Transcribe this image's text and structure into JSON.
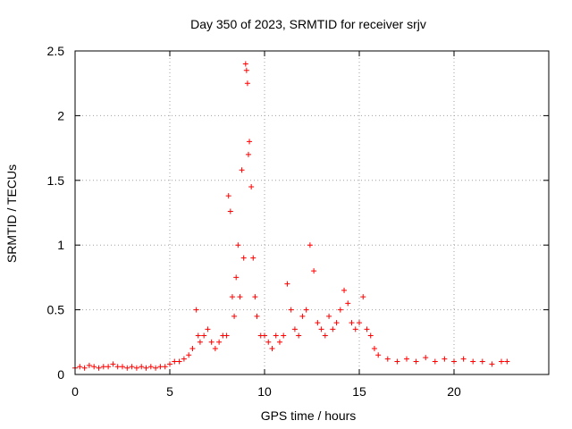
{
  "chart_data": {
    "type": "scatter",
    "title": "Day 350 of 2023, SRMTID for receiver srjv",
    "xlabel": "GPS time / hours",
    "ylabel": "SRMTID / TECUs",
    "xlim": [
      0,
      25
    ],
    "ylim": [
      0,
      2.5
    ],
    "x_ticks": [
      0,
      5,
      10,
      15,
      20
    ],
    "x_tick_labels": [
      "0",
      "5",
      "10",
      "15",
      "20"
    ],
    "y_ticks": [
      0,
      0.5,
      1,
      1.5,
      2,
      2.5
    ],
    "y_tick_labels": [
      "0",
      "0.5",
      "1",
      "1.5",
      "2",
      "2.5"
    ],
    "grid": true,
    "marker": "+",
    "series": [
      {
        "name": "SRMTID",
        "color": "#ff0000",
        "x": [
          0.0,
          0.25,
          0.5,
          0.75,
          1.0,
          1.25,
          1.5,
          1.75,
          2.0,
          2.25,
          2.5,
          2.75,
          3.0,
          3.25,
          3.5,
          3.75,
          4.0,
          4.25,
          4.5,
          4.75,
          5.0,
          5.25,
          5.5,
          5.75,
          6.0,
          6.2,
          6.4,
          6.5,
          6.6,
          6.8,
          7.0,
          7.2,
          7.4,
          7.6,
          7.8,
          8.0,
          8.1,
          8.2,
          8.3,
          8.4,
          8.5,
          8.6,
          8.7,
          8.8,
          8.9,
          9.0,
          9.05,
          9.1,
          9.15,
          9.2,
          9.3,
          9.4,
          9.5,
          9.6,
          9.8,
          10.0,
          10.2,
          10.4,
          10.6,
          10.8,
          11.0,
          11.2,
          11.4,
          11.6,
          11.8,
          12.0,
          12.2,
          12.4,
          12.6,
          12.8,
          13.0,
          13.2,
          13.4,
          13.6,
          13.8,
          14.0,
          14.2,
          14.4,
          14.6,
          14.8,
          15.0,
          15.2,
          15.4,
          15.6,
          15.8,
          16.0,
          16.5,
          17.0,
          17.5,
          18.0,
          18.5,
          19.0,
          19.5,
          20.0,
          20.5,
          21.0,
          21.5,
          22.0,
          22.5,
          22.8
        ],
        "y": [
          0.05,
          0.06,
          0.05,
          0.07,
          0.06,
          0.05,
          0.06,
          0.06,
          0.08,
          0.06,
          0.06,
          0.05,
          0.06,
          0.05,
          0.06,
          0.05,
          0.06,
          0.05,
          0.06,
          0.06,
          0.08,
          0.1,
          0.1,
          0.12,
          0.15,
          0.2,
          0.5,
          0.3,
          0.25,
          0.3,
          0.35,
          0.25,
          0.2,
          0.25,
          0.3,
          0.3,
          1.38,
          1.26,
          0.6,
          0.45,
          0.75,
          1.0,
          0.6,
          1.58,
          0.9,
          2.4,
          2.35,
          2.25,
          1.7,
          1.8,
          1.45,
          0.9,
          0.6,
          0.45,
          0.3,
          0.3,
          0.25,
          0.2,
          0.3,
          0.25,
          0.3,
          0.7,
          0.5,
          0.35,
          0.3,
          0.45,
          0.5,
          1.0,
          0.8,
          0.4,
          0.35,
          0.3,
          0.45,
          0.35,
          0.4,
          0.5,
          0.65,
          0.55,
          0.4,
          0.35,
          0.4,
          0.6,
          0.35,
          0.3,
          0.2,
          0.15,
          0.12,
          0.1,
          0.12,
          0.1,
          0.13,
          0.1,
          0.12,
          0.1,
          0.12,
          0.1,
          0.1,
          0.08,
          0.1,
          0.1
        ]
      }
    ]
  }
}
